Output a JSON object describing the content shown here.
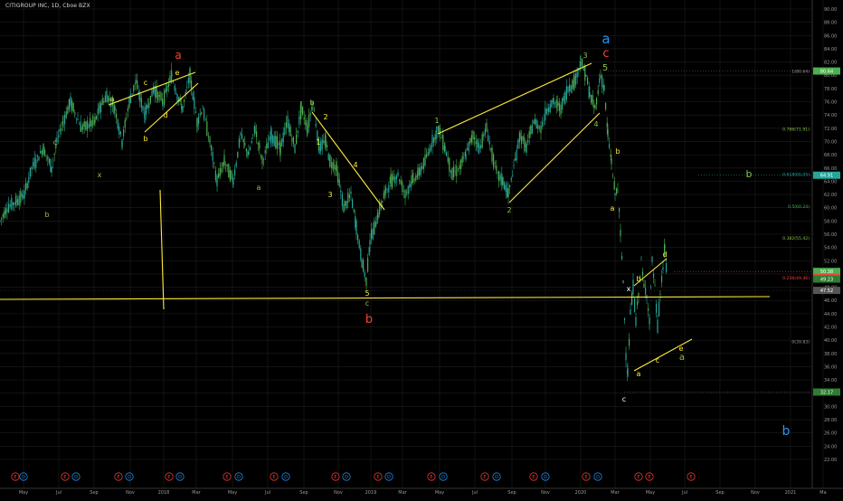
{
  "title": "CITIGROUP INC, 1D, Cboe BZX",
  "chart_data": {
    "type": "candlestick",
    "x_ticks": [
      "May",
      "Jul",
      "Sep",
      "Nov",
      "2018",
      "Mar",
      "May",
      "Jul",
      "Sep",
      "Nov",
      "2019",
      "Mar",
      "May",
      "Jul",
      "Sep",
      "Nov",
      "2020",
      "Mar",
      "May",
      "Jul",
      "Sep",
      "Nov",
      "2021",
      "Ma"
    ],
    "y_ticks": [
      22,
      24,
      26,
      28,
      30,
      32,
      34,
      36,
      38,
      40,
      42,
      44,
      46,
      48,
      50,
      52,
      54,
      56,
      58,
      60,
      62,
      64,
      66,
      68,
      70,
      72,
      74,
      76,
      78,
      80,
      82,
      84,
      86,
      88,
      90
    ],
    "ylim": [
      21,
      91
    ],
    "price_path": [
      [
        0,
        58
      ],
      [
        8,
        60
      ],
      [
        18,
        61
      ],
      [
        27,
        62
      ],
      [
        35,
        66
      ],
      [
        48,
        69
      ],
      [
        57,
        66
      ],
      [
        63,
        70
      ],
      [
        70,
        73
      ],
      [
        78,
        76
      ],
      [
        90,
        72
      ],
      [
        105,
        73
      ],
      [
        110,
        75
      ],
      [
        118,
        77
      ],
      [
        127,
        75
      ],
      [
        135,
        70
      ],
      [
        143,
        76
      ],
      [
        150,
        79
      ],
      [
        160,
        74
      ],
      [
        170,
        78
      ],
      [
        180,
        76
      ],
      [
        190,
        80
      ],
      [
        196,
        77
      ],
      [
        202,
        75
      ],
      [
        210,
        80
      ],
      [
        218,
        73
      ],
      [
        224,
        75
      ],
      [
        232,
        70
      ],
      [
        240,
        64
      ],
      [
        248,
        67
      ],
      [
        258,
        64
      ],
      [
        266,
        71
      ],
      [
        275,
        68
      ],
      [
        282,
        72
      ],
      [
        290,
        67
      ],
      [
        300,
        71
      ],
      [
        310,
        69
      ],
      [
        318,
        73
      ],
      [
        326,
        69
      ],
      [
        333,
        75
      ],
      [
        340,
        72
      ],
      [
        346,
        76
      ],
      [
        353,
        69
      ],
      [
        360,
        70
      ],
      [
        365,
        67
      ],
      [
        372,
        66
      ],
      [
        380,
        60
      ],
      [
        388,
        62
      ],
      [
        394,
        57
      ],
      [
        400,
        52
      ],
      [
        405,
        49
      ],
      [
        409,
        55
      ],
      [
        414,
        57
      ],
      [
        418,
        59
      ],
      [
        425,
        62
      ],
      [
        432,
        64
      ],
      [
        440,
        65
      ],
      [
        448,
        62
      ],
      [
        455,
        64
      ],
      [
        462,
        65
      ],
      [
        470,
        67
      ],
      [
        478,
        70
      ],
      [
        485,
        72
      ],
      [
        492,
        69
      ],
      [
        500,
        65
      ],
      [
        508,
        66
      ],
      [
        515,
        68
      ],
      [
        523,
        71
      ],
      [
        530,
        69
      ],
      [
        538,
        72
      ],
      [
        544,
        68
      ],
      [
        550,
        65
      ],
      [
        556,
        64
      ],
      [
        562,
        62
      ],
      [
        568,
        66
      ],
      [
        575,
        71
      ],
      [
        582,
        69
      ],
      [
        590,
        73
      ],
      [
        598,
        72
      ],
      [
        605,
        75
      ],
      [
        612,
        76
      ],
      [
        620,
        75
      ],
      [
        628,
        78
      ],
      [
        635,
        79
      ],
      [
        642,
        82
      ],
      [
        648,
        80
      ],
      [
        652,
        77
      ],
      [
        658,
        75
      ],
      [
        664,
        80
      ],
      [
        668,
        78
      ],
      [
        672,
        71
      ],
      [
        676,
        67
      ],
      [
        680,
        62
      ],
      [
        683,
        63
      ],
      [
        686,
        56
      ],
      [
        689,
        49
      ],
      [
        692,
        38
      ],
      [
        694,
        35
      ],
      [
        697,
        44
      ],
      [
        700,
        48
      ],
      [
        703,
        43
      ],
      [
        706,
        47
      ],
      [
        709,
        52
      ],
      [
        712,
        48
      ],
      [
        715,
        47
      ],
      [
        718,
        43
      ],
      [
        721,
        52
      ],
      [
        724,
        48
      ],
      [
        727,
        42
      ],
      [
        730,
        47
      ],
      [
        733,
        51
      ],
      [
        735,
        54
      ],
      [
        737,
        50
      ]
    ],
    "line_labels": [
      {
        "text": "c",
        "x": "2017-05",
        "color": "#8bc34a"
      },
      {
        "text": "x",
        "x": "2017-09",
        "color": "#8bc34a"
      },
      {
        "text": "b",
        "x": "2017-04",
        "color": "#8bc34a"
      },
      {
        "text": "a",
        "x": "2017-09",
        "color": "#ffeb3b"
      },
      {
        "text": "c",
        "x": "2017-11",
        "color": "#ffeb3b"
      },
      {
        "text": "e",
        "x": "2018-01",
        "color": "#ffeb3b"
      },
      {
        "text": "b",
        "x": "2017-11",
        "color": "#ffeb3b"
      },
      {
        "text": "d",
        "x": "2018-01",
        "color": "#ffeb3b"
      },
      {
        "text": "a",
        "x": "2018-01",
        "color": "#f44336"
      },
      {
        "text": "a",
        "x": "2018-07",
        "color": "#8bc34a"
      },
      {
        "text": "b",
        "x": "2018-09",
        "color": "#8bc34a"
      },
      {
        "text": "2",
        "x": "2018-09",
        "color": "#ffeb3b"
      },
      {
        "text": "1",
        "x": "2018-09",
        "color": "#ffeb3b"
      },
      {
        "text": "3",
        "x": "2018-10",
        "color": "#ffeb3b"
      },
      {
        "text": "4",
        "x": "2018-11",
        "color": "#ffeb3b"
      },
      {
        "text": "5",
        "x": "2018-12",
        "color": "#ffeb3b"
      },
      {
        "text": "c",
        "x": "2018-12",
        "color": "#8bc34a"
      },
      {
        "text": "b",
        "x": "2018-12",
        "color": "#f44336"
      },
      {
        "text": "1",
        "x": "2019-05",
        "color": "#8bc34a"
      },
      {
        "text": "2",
        "x": "2019-08",
        "color": "#8bc34a"
      },
      {
        "text": "3",
        "x": "2019-12",
        "color": "#8bc34a"
      },
      {
        "text": "4",
        "x": "2020-01",
        "color": "#8bc34a"
      },
      {
        "text": "5",
        "x": "2020-01",
        "color": "#8bc34a"
      },
      {
        "text": "a",
        "x": "2020-01",
        "color": "#2196f3"
      },
      {
        "text": "c",
        "x": "2020-01",
        "color": "#f44336"
      },
      {
        "text": "b",
        "x": "2020-02",
        "color": "#ffeb3b"
      },
      {
        "text": "a",
        "x": "2020-02",
        "color": "#ffeb3b"
      },
      {
        "text": "b",
        "x": "2020-07",
        "color": "#8bc34a"
      },
      {
        "text": "x",
        "x": "2020-03",
        "color": "#ffffff"
      },
      {
        "text": "b",
        "x": "2020-04",
        "color": "#ffeb3b"
      },
      {
        "text": "d",
        "x": "2020-05",
        "color": "#ffeb3b"
      },
      {
        "text": "a",
        "x": "2020-04",
        "color": "#ffeb3b"
      },
      {
        "text": "c",
        "x": "2020-05",
        "color": "#ffeb3b"
      },
      {
        "text": "e",
        "x": "2020-06",
        "color": "#ffeb3b"
      },
      {
        "text": "a",
        "x": "2020-06",
        "color": "#8bc34a"
      },
      {
        "text": "c",
        "x": "2020-03",
        "color": "#ffffff"
      },
      {
        "text": "b",
        "x": "2020-07",
        "color": "#2196f3"
      }
    ],
    "fib_levels": [
      {
        "label": "1(80.64)",
        "value": 80.64,
        "color": "#9e9e9e"
      },
      {
        "label": "0.786(71.91)",
        "value": 71.91,
        "color": "#8bc34a"
      },
      {
        "label": "0.618(65.05)",
        "value": 65.05,
        "color": "#26a69a"
      },
      {
        "label": "0.5(60.24)",
        "value": 60.24,
        "color": "#4caf50"
      },
      {
        "label": "0.382(55.42)",
        "value": 55.42,
        "color": "#8bc34a"
      },
      {
        "label": "0.236(49.46)",
        "value": 49.46,
        "color": "#f44336"
      },
      {
        "label": "0(39.83)",
        "value": 39.83,
        "color": "#9e9e9e"
      }
    ],
    "price_badges": [
      {
        "text": "80.64",
        "value": 80.64,
        "color": "#4caf50"
      },
      {
        "text": "64.91",
        "value": 64.91,
        "color": "#26a69a"
      },
      {
        "text": "50.38",
        "value": 50.38,
        "color": "#4caf50"
      },
      {
        "text": "49.46",
        "value": 49.46,
        "color": "#f44336"
      },
      {
        "text": "49.23",
        "value": 49.23,
        "color": "#2e7d32"
      },
      {
        "text": "47.52",
        "value": 47.52,
        "color": "#555555"
      },
      {
        "text": "32.17",
        "value": 32.17,
        "color": "#2e7d32"
      }
    ],
    "event_icons": [
      "E",
      "D",
      "E",
      "D",
      "E",
      "D",
      "E",
      "D",
      "E",
      "D",
      "E",
      "D",
      "E",
      "D",
      "E",
      "D",
      "E",
      "D",
      "E",
      "D",
      "E",
      "D",
      "E",
      "D",
      "E"
    ],
    "colors": {
      "up": "#26a69a",
      "down": "#4caf50",
      "trend": "#ffeb3b",
      "grid": "#1e1e1e",
      "axis_text": "#9a9a9a"
    }
  }
}
